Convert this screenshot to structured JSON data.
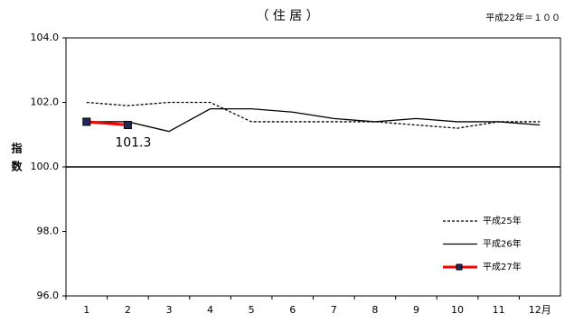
{
  "chart_data": {
    "type": "line",
    "title": "（ 住 居 ）",
    "subtitle": "平成22年＝１００",
    "y_label": "指数",
    "categories": [
      "1",
      "2",
      "3",
      "4",
      "5",
      "6",
      "7",
      "8",
      "9",
      "10",
      "11",
      "12月"
    ],
    "series": [
      {
        "name": "平成25年",
        "color": "#000000",
        "dash": true,
        "marker": false,
        "values": [
          102.0,
          101.9,
          102.0,
          102.0,
          101.4,
          101.4,
          101.4,
          101.4,
          101.3,
          101.2,
          101.4,
          101.4
        ]
      },
      {
        "name": "平成26年",
        "color": "#000000",
        "dash": false,
        "marker": false,
        "values": [
          101.4,
          101.4,
          101.1,
          101.8,
          101.8,
          101.7,
          101.5,
          101.4,
          101.5,
          101.4,
          101.4,
          101.3
        ]
      },
      {
        "name": "平成27年",
        "color": "#ff0000",
        "dash": false,
        "marker": true,
        "values": [
          101.4,
          101.3,
          null,
          null,
          null,
          null,
          null,
          null,
          null,
          null,
          null,
          null
        ]
      }
    ],
    "ylim": [
      96,
      104
    ],
    "yticks": [
      {
        "value": 96,
        "label": "96.0"
      },
      {
        "value": 98,
        "label": "98.0"
      },
      {
        "value": 100,
        "label": "100.0"
      },
      {
        "value": 102,
        "label": "102.0"
      },
      {
        "value": 104,
        "label": "104.0"
      }
    ],
    "reference_line": 100,
    "grid": false
  }
}
